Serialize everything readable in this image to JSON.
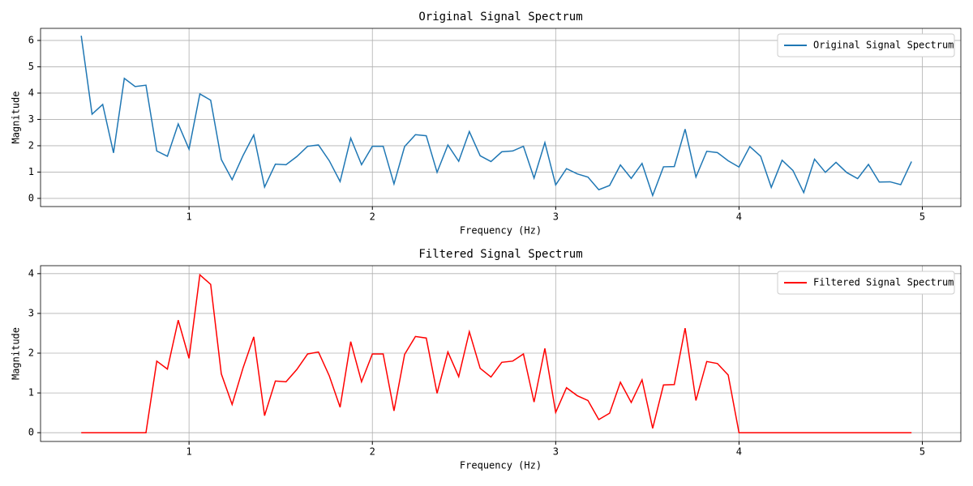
{
  "chart_data": [
    {
      "type": "line",
      "title": "Original Signal Spectrum",
      "xlabel": "Frequency (Hz)",
      "ylabel": "Magnitude",
      "x": [
        0.412,
        0.471,
        0.529,
        0.588,
        0.647,
        0.706,
        0.765,
        0.824,
        0.882,
        0.941,
        1.0,
        1.059,
        1.118,
        1.176,
        1.235,
        1.294,
        1.353,
        1.412,
        1.471,
        1.529,
        1.588,
        1.647,
        1.706,
        1.765,
        1.824,
        1.882,
        1.941,
        2.0,
        2.059,
        2.118,
        2.176,
        2.235,
        2.294,
        2.353,
        2.412,
        2.471,
        2.529,
        2.588,
        2.647,
        2.706,
        2.765,
        2.824,
        2.882,
        2.941,
        3.0,
        3.059,
        3.118,
        3.176,
        3.235,
        3.294,
        3.353,
        3.412,
        3.471,
        3.529,
        3.588,
        3.647,
        3.706,
        3.765,
        3.824,
        3.882,
        3.941,
        4.0,
        4.059,
        4.118,
        4.176,
        4.235,
        4.294,
        4.353,
        4.412,
        4.471,
        4.529,
        4.588,
        4.647,
        4.706,
        4.765,
        4.824,
        4.882,
        4.941
      ],
      "series": [
        {
          "name": "Original Signal Spectrum",
          "color": "#1f77b4",
          "values": [
            6.18,
            3.2,
            3.57,
            1.73,
            4.56,
            4.25,
            4.3,
            1.8,
            1.6,
            2.83,
            1.87,
            3.97,
            3.73,
            1.48,
            0.71,
            1.62,
            2.41,
            0.43,
            1.3,
            1.28,
            1.59,
            1.98,
            2.03,
            1.43,
            0.64,
            2.29,
            1.28,
            1.98,
            1.98,
            0.55,
            1.97,
            2.42,
            2.38,
            0.99,
            2.03,
            1.41,
            2.54,
            1.62,
            1.4,
            1.77,
            1.8,
            1.98,
            0.77,
            2.12,
            0.51,
            1.13,
            0.93,
            0.81,
            0.33,
            0.49,
            1.27,
            0.76,
            1.33,
            0.11,
            1.2,
            1.21,
            2.63,
            0.81,
            1.79,
            1.74,
            1.43,
            1.19,
            1.97,
            1.6,
            0.42,
            1.45,
            1.06,
            0.22,
            1.49,
            0.99,
            1.37,
            0.98,
            0.75,
            1.29,
            0.62,
            0.63,
            0.52,
            1.4
          ]
        }
      ],
      "xlim": [
        0.19,
        5.21
      ],
      "ylim": [
        -0.31,
        6.46
      ],
      "xticks": [
        1,
        2,
        3,
        4,
        5
      ],
      "yticks": [
        0,
        1,
        2,
        3,
        4,
        5,
        6
      ],
      "grid": true,
      "legend": "upper right"
    },
    {
      "type": "line",
      "title": "Filtered Signal Spectrum",
      "xlabel": "Frequency (Hz)",
      "ylabel": "Magnitude",
      "x": [
        0.412,
        0.471,
        0.529,
        0.588,
        0.647,
        0.706,
        0.765,
        0.824,
        0.882,
        0.941,
        1.0,
        1.059,
        1.118,
        1.176,
        1.235,
        1.294,
        1.353,
        1.412,
        1.471,
        1.529,
        1.588,
        1.647,
        1.706,
        1.765,
        1.824,
        1.882,
        1.941,
        2.0,
        2.059,
        2.118,
        2.176,
        2.235,
        2.294,
        2.353,
        2.412,
        2.471,
        2.529,
        2.588,
        2.647,
        2.706,
        2.765,
        2.824,
        2.882,
        2.941,
        3.0,
        3.059,
        3.118,
        3.176,
        3.235,
        3.294,
        3.353,
        3.412,
        3.471,
        3.529,
        3.588,
        3.647,
        3.706,
        3.765,
        3.824,
        3.882,
        3.941,
        4.0,
        4.059,
        4.118,
        4.176,
        4.235,
        4.294,
        4.353,
        4.412,
        4.471,
        4.529,
        4.588,
        4.647,
        4.706,
        4.765,
        4.824,
        4.882,
        4.941
      ],
      "series": [
        {
          "name": "Filtered Signal Spectrum",
          "color": "#ff0000",
          "values": [
            0,
            0,
            0,
            0,
            0,
            0,
            0,
            1.8,
            1.6,
            2.83,
            1.87,
            3.97,
            3.73,
            1.48,
            0.71,
            1.62,
            2.41,
            0.43,
            1.3,
            1.28,
            1.59,
            1.98,
            2.03,
            1.43,
            0.64,
            2.29,
            1.28,
            1.98,
            1.98,
            0.55,
            1.97,
            2.42,
            2.38,
            0.99,
            2.03,
            1.41,
            2.54,
            1.62,
            1.4,
            1.77,
            1.8,
            1.98,
            0.77,
            2.12,
            0.51,
            1.13,
            0.93,
            0.81,
            0.33,
            0.49,
            1.27,
            0.76,
            1.33,
            0.11,
            1.2,
            1.21,
            2.63,
            0.81,
            1.79,
            1.74,
            1.45,
            0,
            0,
            0,
            0,
            0,
            0,
            0,
            0,
            0,
            0,
            0,
            0,
            0,
            0,
            0,
            0,
            0
          ]
        }
      ],
      "xlim": [
        0.19,
        5.21
      ],
      "ylim": [
        -0.22,
        4.2
      ],
      "xticks": [
        1,
        2,
        3,
        4,
        5
      ],
      "yticks": [
        0,
        1,
        2,
        3,
        4
      ],
      "grid": true,
      "legend": "upper right"
    }
  ]
}
